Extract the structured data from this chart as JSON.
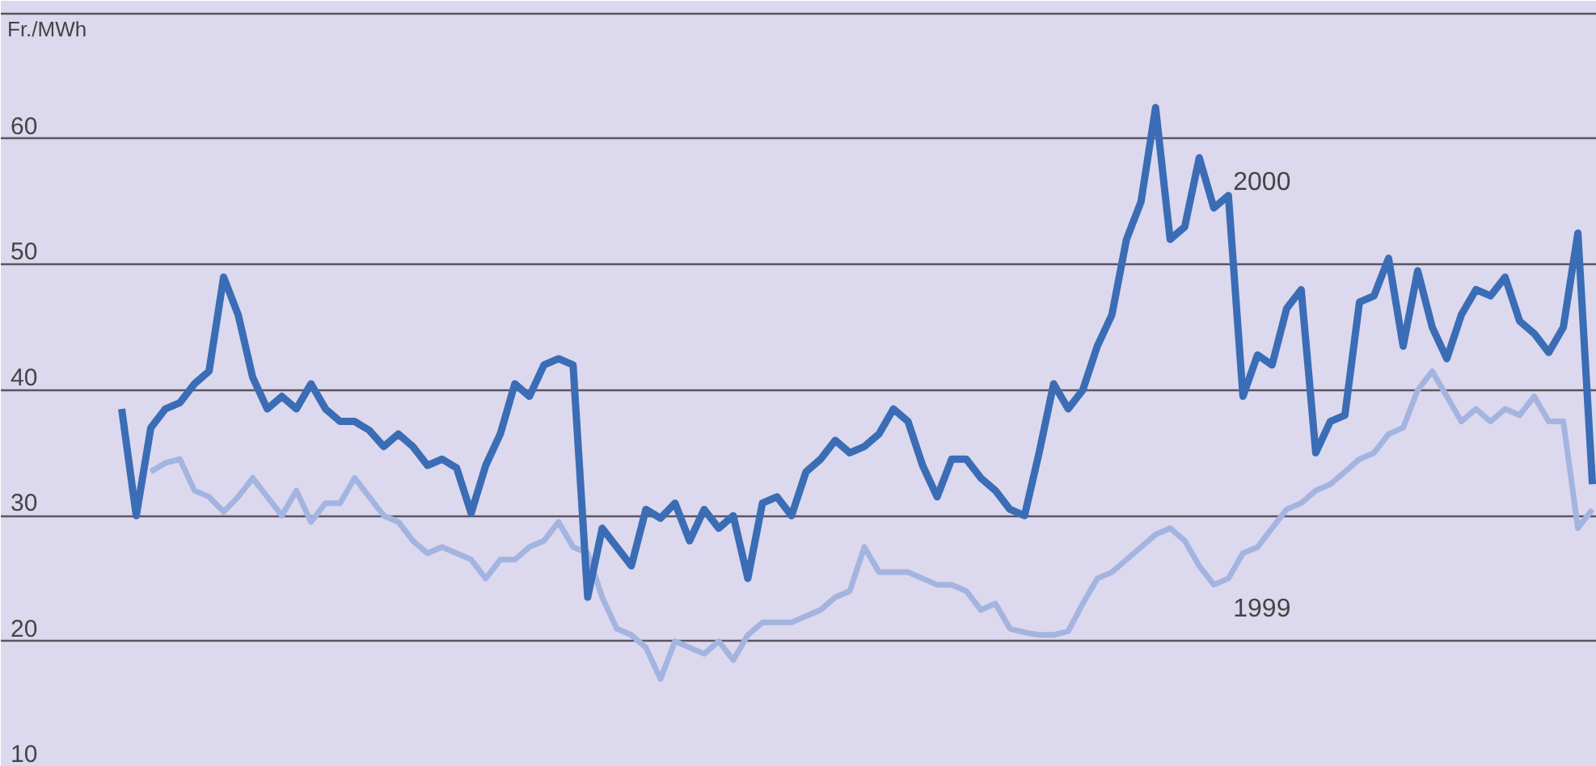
{
  "chart_data": {
    "type": "line",
    "ylabel": "Fr./MWh",
    "categories": [
      null,
      null,
      null,
      null,
      null,
      null,
      null,
      null,
      null,
      null,
      null,
      null,
      null,
      null,
      null,
      null,
      null,
      null,
      null,
      null,
      null,
      null,
      null,
      null,
      null,
      null,
      null,
      null,
      null,
      null,
      null,
      null,
      null,
      null,
      null,
      null,
      null,
      null,
      null,
      null,
      null,
      null,
      null,
      null,
      null,
      null,
      null,
      null,
      null,
      null,
      null,
      null,
      null,
      null,
      null,
      null,
      null,
      null,
      null,
      null,
      null,
      null,
      null,
      null,
      null,
      null,
      null,
      null,
      null,
      null,
      null,
      null,
      null,
      null,
      null,
      null,
      null,
      null,
      null,
      null,
      null,
      null,
      null,
      null,
      null,
      null,
      null,
      null,
      null,
      null,
      null,
      null,
      null,
      null,
      null,
      null,
      null,
      null,
      null,
      null,
      null,
      null
    ],
    "series": [
      {
        "name": "1999",
        "color": "#a3b4e0",
        "values": [
          null,
          null,
          33.5,
          34.2,
          34.5,
          32,
          31.5,
          30.3,
          31.5,
          33,
          31.5,
          30,
          32,
          29.5,
          31,
          31,
          33,
          31.5,
          30,
          29.5,
          28,
          27,
          27.5,
          27,
          26.5,
          25,
          26.5,
          26.5,
          27.5,
          28,
          29.5,
          27.5,
          27,
          23.5,
          21,
          20.5,
          19.5,
          17,
          20,
          19.5,
          19,
          20,
          18.5,
          20.5,
          21.5,
          21.5,
          21.5,
          22,
          22.5,
          23.5,
          24,
          27.5,
          25.5,
          25.5,
          25.5,
          25,
          24.5,
          24.5,
          24,
          22.5,
          23,
          21,
          20.7,
          20.5,
          20.5,
          20.8,
          23,
          25,
          25.5,
          26.5,
          27.5,
          28.5,
          29,
          28,
          26,
          24.5,
          25,
          27,
          27.5,
          29,
          30.5,
          31,
          32,
          32.5,
          33.5,
          34.5,
          35,
          36.5,
          37,
          40,
          41.5,
          39.5,
          37.5,
          38.5,
          37.5,
          38.5,
          38,
          39.5,
          37.5,
          37.5,
          29,
          30.5
        ]
      },
      {
        "name": "2000",
        "color": "#3a6db5",
        "values": [
          38.5,
          30,
          37,
          38.5,
          39,
          40.5,
          41.5,
          49,
          46,
          41,
          38.5,
          39.5,
          38.5,
          40.5,
          38.5,
          37.5,
          37.5,
          36.8,
          35.5,
          36.5,
          35.5,
          34,
          34.5,
          33.8,
          30.2,
          34,
          36.5,
          40.5,
          39.5,
          42,
          42.5,
          42,
          23.5,
          29,
          27.5,
          26,
          30.5,
          29.8,
          31,
          28,
          30.5,
          29,
          30,
          25,
          31,
          31.5,
          30,
          33.5,
          34.5,
          36,
          35,
          35.5,
          36.5,
          38.5,
          37.5,
          34,
          31.5,
          34.5,
          34.5,
          33,
          32,
          30.5,
          30,
          35,
          40.5,
          38.5,
          40,
          43.5,
          46,
          52,
          55,
          62.5,
          52,
          53,
          58.5,
          54.5,
          55.5,
          39.5,
          42.8,
          42,
          46.5,
          48,
          35,
          37.5,
          38,
          47,
          47.5,
          50.5,
          43.5,
          49.5,
          45,
          42.5,
          46,
          48,
          47.5,
          49,
          45.5,
          44.5,
          43,
          45,
          52.5,
          32.5
        ]
      }
    ],
    "ylim": [
      10,
      71
    ],
    "yticks": [
      10,
      20,
      30,
      40,
      50,
      60,
      {
        "value": 70,
        "label": null
      }
    ],
    "grid": "y",
    "tick_labels": "y",
    "line_style": "solid"
  }
}
